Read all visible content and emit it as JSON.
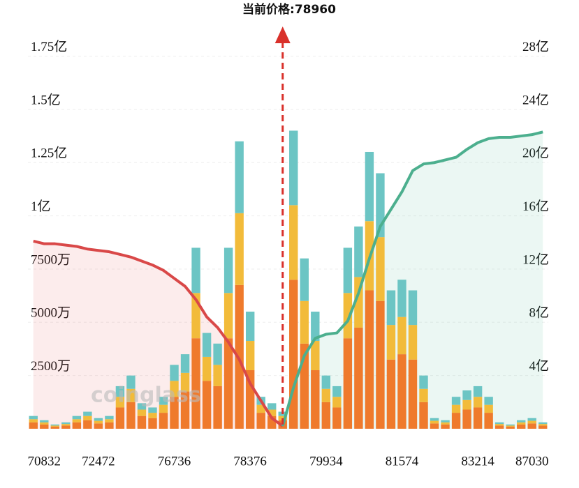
{
  "chart_data": {
    "type": "liquidation-map",
    "title": "当前价格:78960",
    "watermark": "coinglass",
    "categories": [
      null,
      "70832",
      null,
      null,
      null,
      null,
      "72472",
      null,
      null,
      null,
      null,
      null,
      null,
      "76736",
      null,
      null,
      null,
      null,
      null,
      null,
      "78376",
      null,
      null,
      null,
      null,
      null,
      null,
      "79934",
      null,
      null,
      null,
      null,
      null,
      null,
      "81574",
      null,
      null,
      null,
      null,
      null,
      null,
      "83214",
      null,
      null,
      null,
      null,
      "87030",
      null
    ],
    "ylim": [
      0,
      185000000
    ],
    "yticks": [
      {
        "value": 25000000,
        "label": "2500万"
      },
      {
        "value": 50000000,
        "label": "5000万"
      },
      {
        "value": 75000000,
        "label": "7500万"
      },
      {
        "value": 100000000,
        "label": "1亿"
      },
      {
        "value": 125000000,
        "label": "1.25亿"
      },
      {
        "value": 150000000,
        "label": "1.5亿"
      },
      {
        "value": 175000000,
        "label": "1.75亿"
      }
    ],
    "y2lim": [
      0,
      2960000000
    ],
    "y2ticks": [
      {
        "value": 400000000,
        "label": "4亿"
      },
      {
        "value": 800000000,
        "label": "8亿"
      },
      {
        "value": 1200000000,
        "label": "12亿"
      },
      {
        "value": 1600000000,
        "label": "16亿"
      },
      {
        "value": 2000000000,
        "label": "20亿"
      },
      {
        "value": 2400000000,
        "label": "24亿"
      },
      {
        "value": 2800000000,
        "label": "28亿"
      }
    ],
    "grid": true,
    "bar_series": [
      {
        "color": "#ef7a2c",
        "values": [
          3000000,
          2000000,
          1000000,
          1500000,
          3000000,
          4000000,
          2500000,
          3000000,
          10000000,
          12500000,
          6000000,
          5000000,
          7500000,
          15000000,
          17500000,
          42500000,
          22500000,
          20000000,
          42500000,
          67500000,
          27500000,
          7500000,
          6000000,
          4000000,
          70000000,
          40000000,
          27500000,
          12500000,
          10000000,
          42500000,
          47500000,
          65000000,
          60000000,
          32500000,
          35000000,
          32500000,
          12500000,
          2500000,
          2000000,
          7500000,
          9000000,
          10000000,
          7500000,
          1500000,
          1000000,
          2000000,
          2500000,
          1500000
        ]
      },
      {
        "color": "#f2bb3a",
        "values": [
          1500000,
          1000000,
          500000,
          750000,
          1500000,
          2000000,
          1250000,
          1500000,
          5000000,
          6250000,
          3000000,
          2500000,
          3750000,
          7500000,
          8750000,
          21250000,
          11250000,
          10000000,
          21250000,
          33750000,
          13750000,
          3750000,
          3000000,
          2000000,
          35000000,
          20000000,
          13750000,
          6250000,
          5000000,
          21250000,
          23750000,
          32500000,
          30000000,
          16250000,
          17500000,
          16250000,
          6250000,
          1250000,
          1000000,
          3750000,
          4500000,
          5000000,
          3750000,
          750000,
          500000,
          1000000,
          1250000,
          750000
        ]
      },
      {
        "color": "#6cc5c4",
        "values": [
          1500000,
          1000000,
          500000,
          750000,
          1500000,
          2000000,
          1250000,
          1500000,
          5000000,
          6250000,
          3000000,
          2500000,
          3750000,
          7500000,
          8750000,
          21250000,
          11250000,
          10000000,
          21250000,
          33750000,
          13750000,
          3750000,
          3000000,
          2000000,
          35000000,
          20000000,
          13750000,
          6250000,
          5000000,
          21250000,
          23750000,
          32500000,
          30000000,
          16250000,
          17500000,
          16250000,
          6250000,
          1250000,
          1000000,
          3750000,
          4500000,
          5000000,
          3750000,
          750000,
          500000,
          1000000,
          1250000,
          750000
        ]
      }
    ],
    "series": [
      {
        "color": "#d94848",
        "fill": "rgba(232,110,110,0.13)",
        "axis": "y2",
        "values": [
          1410000000,
          1390000000,
          1390000000,
          1380000000,
          1370000000,
          1350000000,
          1340000000,
          1330000000,
          1310000000,
          1290000000,
          1260000000,
          1230000000,
          1190000000,
          1130000000,
          1070000000,
          970000000,
          840000000,
          760000000,
          650000000,
          520000000,
          340000000,
          210000000,
          80000000,
          20000000,
          null,
          null,
          null,
          null,
          null,
          null,
          null,
          null,
          null,
          null,
          null,
          null,
          null,
          null,
          null,
          null,
          null,
          null,
          null,
          null,
          null,
          null,
          null,
          null
        ]
      },
      {
        "color": "#4caf8e",
        "fill": "rgba(100,190,160,0.13)",
        "axis": "y2",
        "values": [
          null,
          null,
          null,
          null,
          null,
          null,
          null,
          null,
          null,
          null,
          null,
          null,
          null,
          null,
          null,
          null,
          null,
          null,
          null,
          null,
          null,
          null,
          null,
          20000000,
          310000000,
          550000000,
          680000000,
          710000000,
          720000000,
          810000000,
          1020000000,
          1280000000,
          1520000000,
          1650000000,
          1780000000,
          1940000000,
          1990000000,
          2000000000,
          2020000000,
          2040000000,
          2100000000,
          2150000000,
          2180000000,
          2190000000,
          2190000000,
          2200000000,
          2210000000,
          2230000000
        ]
      }
    ]
  }
}
